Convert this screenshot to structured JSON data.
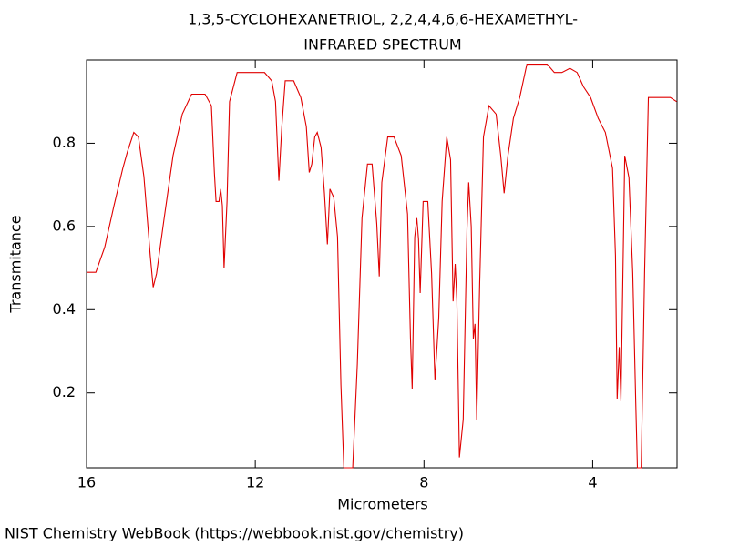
{
  "chart_data": {
    "type": "line",
    "title": "1,3,5-CYCLOHEXANETRIOL, 2,2,4,4,6,6-HEXAMETHYL-",
    "subtitle": "INFRARED SPECTRUM",
    "x_label": "Micrometers",
    "y_label": "Transmitance",
    "source": "NIST Chemistry WebBook (https://webbook.nist.gov/chemistry)",
    "color": "#e00000",
    "xlim": [
      16,
      2
    ],
    "ylim": [
      0.02,
      1.0
    ],
    "xticks": [
      16,
      12,
      8,
      4
    ],
    "yticks": [
      0.2,
      0.4,
      0.6,
      0.8
    ],
    "x": [
      16,
      15.78,
      15.57,
      15.35,
      15.14,
      15.03,
      14.88,
      14.77,
      14.64,
      14.49,
      14.42,
      14.34,
      14.16,
      13.95,
      13.73,
      13.51,
      13.19,
      13.04,
      12.97,
      12.93,
      12.86,
      12.82,
      12.78,
      12.74,
      12.67,
      12.61,
      12.43,
      11.78,
      11.61,
      11.52,
      11.44,
      11.37,
      11.29,
      11.09,
      10.92,
      10.79,
      10.72,
      10.66,
      10.59,
      10.53,
      10.44,
      10.36,
      10.29,
      10.23,
      10.14,
      10.05,
      9.97,
      9.9,
      9.69,
      9.58,
      9.47,
      9.34,
      9.23,
      9.12,
      9.06,
      9.0,
      8.86,
      8.71,
      8.54,
      8.39,
      8.32,
      8.28,
      8.22,
      8.17,
      8.13,
      8.09,
      8.02,
      7.91,
      7.82,
      7.74,
      7.65,
      7.57,
      7.46,
      7.37,
      7.31,
      7.26,
      7.22,
      7.16,
      7.07,
      6.98,
      6.94,
      6.88,
      6.83,
      6.79,
      6.75,
      6.68,
      6.59,
      6.46,
      6.29,
      6.18,
      6.1,
      6.01,
      5.88,
      5.73,
      5.56,
      5.08,
      4.91,
      4.73,
      4.54,
      4.37,
      4.22,
      4.05,
      3.87,
      3.7,
      3.53,
      3.46,
      3.42,
      3.37,
      3.33,
      3.24,
      3.14,
      3.05,
      2.98,
      2.94,
      2.85,
      2.77,
      2.68,
      2.49,
      2.16,
      2.01
    ],
    "values": [
      0.49,
      0.49,
      0.55,
      0.65,
      0.74,
      0.78,
      0.826,
      0.815,
      0.72,
      0.53,
      0.454,
      0.487,
      0.62,
      0.77,
      0.87,
      0.918,
      0.918,
      0.89,
      0.73,
      0.66,
      0.66,
      0.69,
      0.65,
      0.5,
      0.66,
      0.9,
      0.97,
      0.97,
      0.95,
      0.9,
      0.71,
      0.84,
      0.95,
      0.95,
      0.91,
      0.84,
      0.73,
      0.75,
      0.815,
      0.826,
      0.79,
      0.68,
      0.557,
      0.69,
      0.67,
      0.575,
      0.22,
      0.02,
      0.02,
      0.27,
      0.62,
      0.75,
      0.75,
      0.607,
      0.48,
      0.706,
      0.815,
      0.815,
      0.77,
      0.63,
      0.33,
      0.21,
      0.574,
      0.62,
      0.57,
      0.44,
      0.66,
      0.66,
      0.487,
      0.23,
      0.38,
      0.66,
      0.815,
      0.76,
      0.42,
      0.51,
      0.42,
      0.045,
      0.136,
      0.595,
      0.706,
      0.6,
      0.33,
      0.366,
      0.136,
      0.46,
      0.815,
      0.89,
      0.87,
      0.77,
      0.68,
      0.77,
      0.86,
      0.91,
      0.99,
      0.99,
      0.97,
      0.97,
      0.98,
      0.97,
      0.936,
      0.91,
      0.86,
      0.826,
      0.74,
      0.53,
      0.185,
      0.31,
      0.18,
      0.77,
      0.717,
      0.487,
      0.18,
      0.02,
      0.02,
      0.487,
      0.91,
      0.91,
      0.91,
      0.9
    ]
  }
}
